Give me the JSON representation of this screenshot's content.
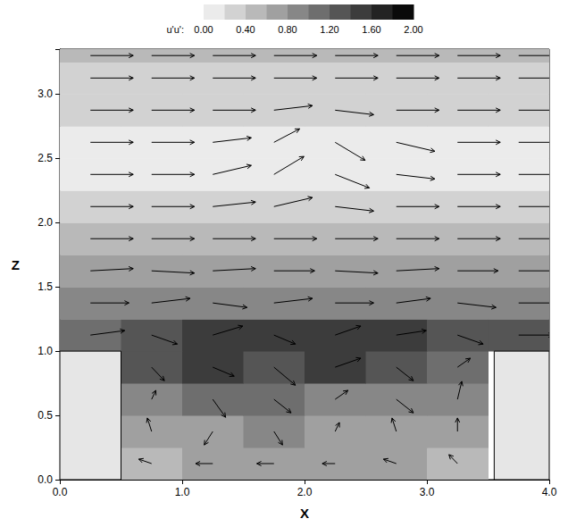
{
  "chart_data": {
    "type": "vector_field",
    "xlabel": "X",
    "ylabel": "Z",
    "xlim": [
      0,
      4
    ],
    "xticks": [
      {
        "value": 0,
        "label": "0.0"
      },
      {
        "value": 1,
        "label": "1.0"
      },
      {
        "value": 2,
        "label": "2.0"
      },
      {
        "value": 3,
        "label": "3.0"
      },
      {
        "value": 4,
        "label": "4.0"
      }
    ],
    "ylim": [
      0,
      3.35
    ],
    "yticks": [
      {
        "value": 0,
        "label": "0.0"
      },
      {
        "value": 0.5,
        "label": "0.5"
      },
      {
        "value": 1,
        "label": "1.0"
      },
      {
        "value": 1.5,
        "label": "1.5"
      },
      {
        "value": 2,
        "label": "2.0"
      },
      {
        "value": 2.5,
        "label": "2.5"
      },
      {
        "value": 3,
        "label": "3.0"
      }
    ],
    "colorbar": {
      "label": "u'u':",
      "range": [
        0,
        2
      ],
      "ticks": [
        {
          "value": 0,
          "label": "0.00"
        },
        {
          "value": 0.4,
          "label": "0.40"
        },
        {
          "value": 0.8,
          "label": "0.80"
        },
        {
          "value": 1.2,
          "label": "1.20"
        },
        {
          "value": 1.6,
          "label": "1.60"
        },
        {
          "value": 2,
          "label": "2.00"
        }
      ]
    },
    "walls": [
      {
        "x": [
          0,
          0.5
        ],
        "z": [
          0,
          1
        ]
      },
      {
        "x": [
          3.55,
          4
        ],
        "z": [
          0,
          1
        ]
      }
    ],
    "cell_x_edges": [
      0,
      0.5,
      1,
      1.5,
      2,
      2.5,
      3,
      3.5,
      4
    ],
    "cell_z_edges": [
      0,
      0.25,
      0.5,
      0.75,
      1,
      1.25,
      1.5,
      1.75,
      2,
      2.25,
      2.5,
      2.75,
      3,
      3.25,
      3.35
    ],
    "cells": [
      [
        null,
        0.5,
        0.6,
        0.6,
        0.6,
        0.6,
        0.5,
        null
      ],
      [
        null,
        0.6,
        0.7,
        0.8,
        0.7,
        0.7,
        0.6,
        null
      ],
      [
        null,
        0.8,
        1.0,
        1.0,
        0.9,
        0.9,
        0.8,
        null
      ],
      [
        null,
        1.2,
        1.4,
        1.3,
        1.4,
        1.3,
        1.1,
        null
      ],
      [
        1.0,
        1.3,
        1.4,
        1.4,
        1.5,
        1.4,
        1.3,
        1.2
      ],
      [
        0.8,
        0.9,
        0.9,
        0.9,
        0.9,
        0.9,
        0.9,
        0.8
      ],
      [
        0.6,
        0.6,
        0.6,
        0.6,
        0.6,
        0.6,
        0.6,
        0.6
      ],
      [
        0.4,
        0.4,
        0.4,
        0.4,
        0.4,
        0.4,
        0.4,
        0.4
      ],
      [
        0.2,
        0.2,
        0.2,
        0.2,
        0.2,
        0.2,
        0.2,
        0.2
      ],
      [
        0.15,
        0.15,
        0.15,
        0.15,
        0.15,
        0.15,
        0.15,
        0.15
      ],
      [
        0.15,
        0.15,
        0.15,
        0.15,
        0.15,
        0.15,
        0.15,
        0.15
      ],
      [
        0.2,
        0.2,
        0.2,
        0.2,
        0.2,
        0.2,
        0.2,
        0.2
      ],
      [
        0.3,
        0.3,
        0.3,
        0.3,
        0.3,
        0.3,
        0.3,
        0.3
      ],
      [
        0.4,
        0.4,
        0.4,
        0.4,
        0.4,
        0.4,
        0.4,
        0.4
      ]
    ],
    "vector_x": [
      0.25,
      0.75,
      1.25,
      1.75,
      2.25,
      2.75,
      3.25,
      3.75
    ],
    "vector_z": [
      0.125,
      0.375,
      0.625,
      0.875,
      1.125,
      1.375,
      1.625,
      1.875,
      2.125,
      2.375,
      2.625,
      2.875,
      3.125,
      3.3
    ],
    "u": [
      [
        null,
        -0.3,
        -0.4,
        -0.4,
        -0.3,
        -0.3,
        -0.2,
        null
      ],
      [
        null,
        -0.1,
        -0.2,
        0.2,
        0.1,
        -0.1,
        0.0,
        null
      ],
      [
        null,
        0.1,
        0.3,
        0.4,
        0.3,
        0.4,
        0.1,
        null
      ],
      [
        null,
        0.3,
        0.5,
        0.5,
        0.6,
        0.4,
        0.3,
        null
      ],
      [
        0.8,
        0.6,
        0.7,
        0.5,
        0.6,
        0.7,
        0.6,
        0.8
      ],
      [
        0.9,
        0.9,
        0.8,
        0.9,
        0.9,
        0.8,
        0.9,
        0.9
      ],
      [
        1.0,
        1.0,
        1.0,
        0.95,
        1.0,
        1.0,
        0.95,
        1.0
      ],
      [
        1.0,
        1.0,
        1.0,
        1.0,
        1.0,
        1.0,
        1.0,
        1.0
      ],
      [
        1.0,
        1.0,
        1.0,
        0.9,
        0.9,
        1.0,
        1.0,
        1.0
      ],
      [
        1.0,
        1.0,
        0.9,
        0.7,
        0.8,
        0.9,
        1.0,
        1.0
      ],
      [
        1.0,
        1.0,
        0.9,
        0.6,
        0.7,
        0.9,
        1.0,
        1.0
      ],
      [
        1.0,
        1.0,
        1.0,
        0.9,
        0.9,
        1.0,
        1.0,
        1.0
      ],
      [
        1.0,
        1.0,
        1.0,
        1.0,
        1.0,
        1.0,
        1.0,
        1.0
      ],
      [
        1.0,
        1.0,
        1.0,
        1.0,
        1.0,
        1.0,
        1.0,
        1.0
      ]
    ],
    "w": [
      [
        null,
        0.1,
        0.0,
        0.0,
        0.0,
        0.1,
        0.2,
        null
      ],
      [
        null,
        0.3,
        -0.3,
        -0.3,
        0.2,
        0.3,
        0.3,
        null
      ],
      [
        null,
        0.2,
        -0.4,
        -0.3,
        0.2,
        -0.3,
        0.4,
        null
      ],
      [
        null,
        -0.3,
        -0.2,
        -0.4,
        0.2,
        -0.3,
        0.2,
        null
      ],
      [
        0.1,
        -0.2,
        0.2,
        -0.2,
        0.2,
        0.1,
        -0.2,
        0.0
      ],
      [
        0.0,
        0.1,
        -0.1,
        0.1,
        0.0,
        0.1,
        -0.1,
        0.0
      ],
      [
        0.05,
        -0.05,
        0.05,
        0.0,
        -0.05,
        0.05,
        0.0,
        0.0
      ],
      [
        0.0,
        0.0,
        0.0,
        0.0,
        0.0,
        0.0,
        0.0,
        0.0
      ],
      [
        0.0,
        0.0,
        0.1,
        0.2,
        -0.1,
        0.0,
        0.0,
        0.0
      ],
      [
        0.0,
        0.0,
        0.2,
        0.4,
        -0.3,
        -0.1,
        0.0,
        0.0
      ],
      [
        0.0,
        0.0,
        0.1,
        0.3,
        -0.4,
        -0.2,
        0.0,
        0.0
      ],
      [
        0.0,
        0.0,
        0.0,
        0.1,
        -0.1,
        0.0,
        0.0,
        0.0
      ],
      [
        0.0,
        0.0,
        0.0,
        0.0,
        0.0,
        0.0,
        0.0,
        0.0
      ],
      [
        0.0,
        0.0,
        0.0,
        0.0,
        0.0,
        0.0,
        0.0,
        0.0
      ]
    ]
  }
}
